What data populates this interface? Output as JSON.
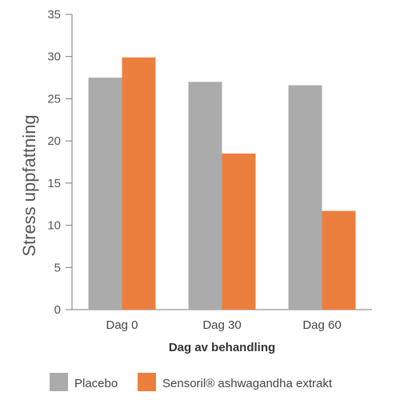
{
  "chart_data": {
    "type": "bar",
    "title": "",
    "xlabel": "Dag av behandling",
    "ylabel": "Stress uppfattning",
    "categories": [
      "Dag 0",
      "Dag 30",
      "Dag 60"
    ],
    "series": [
      {
        "name": "Placebo",
        "values": [
          27.5,
          27.0,
          26.6
        ],
        "color": "#ababab"
      },
      {
        "name": "Sensoril® ashwagandha extrakt",
        "values": [
          29.9,
          18.5,
          11.7
        ],
        "color": "#ed7f3e"
      }
    ],
    "ylim": [
      0,
      35
    ],
    "yticks": [
      0,
      5,
      10,
      15,
      20,
      25,
      30,
      35
    ],
    "grid": false,
    "legend_position": "bottom"
  }
}
